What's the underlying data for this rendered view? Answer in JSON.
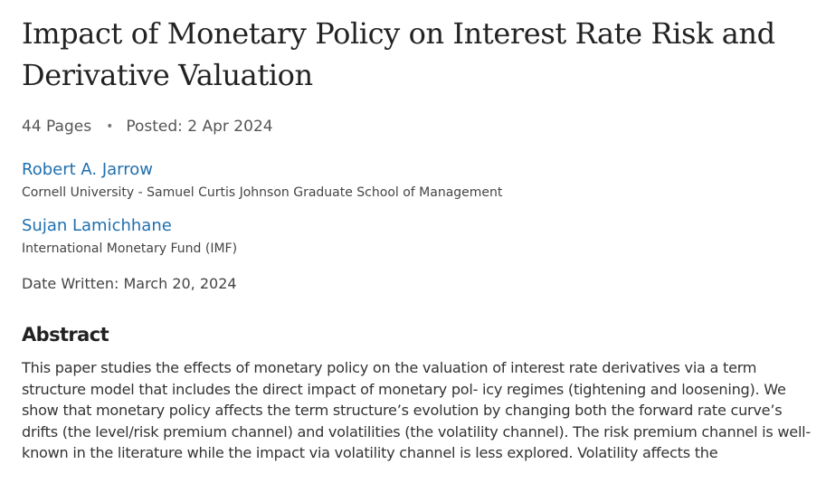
{
  "paper": {
    "title": "Impact of Monetary Policy on Interest Rate Risk and Derivative Valuation",
    "pages": "44 Pages",
    "separator": "•",
    "posted": "Posted: 2 Apr 2024",
    "authors": [
      {
        "name": "Robert A. Jarrow",
        "affiliation": "Cornell University - Samuel Curtis Johnson Graduate School of Management"
      },
      {
        "name": "Sujan Lamichhane",
        "affiliation": "International Monetary Fund (IMF)"
      }
    ],
    "date_written": "Date Written: March 20, 2024",
    "abstract_heading": "Abstract",
    "abstract_text": "This paper studies the effects of monetary policy on the valuation of interest rate derivatives via a term structure model that includes the direct impact of monetary pol- icy regimes (tightening and loosening). We show that monetary policy affects the term structure’s evolution by changing both the forward rate curve’s drifts (the level/risk premium channel) and volatilities (the volatility channel). The risk premium channel is well-known in the literature while the impact via volatility channel is less explored. Volatility affects the"
  }
}
